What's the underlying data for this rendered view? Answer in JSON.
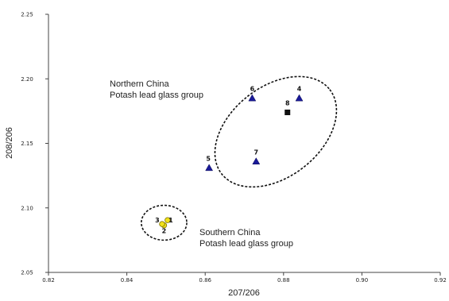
{
  "chart_data": {
    "type": "scatter",
    "xlabel": "207/206",
    "ylabel": "208/206",
    "xlim": [
      0.82,
      0.92
    ],
    "ylim": [
      2.05,
      2.25
    ],
    "x_ticks": [
      "0.82",
      "0.84",
      "0.86",
      "0.88",
      "0.90",
      "0.92"
    ],
    "y_ticks": [
      "2.05",
      "2.10",
      "2.15",
      "2.20",
      "2.25"
    ],
    "grid": false,
    "series": [
      {
        "marker": "triangle",
        "color": "#1a1a99",
        "points": [
          {
            "label": "4",
            "x": 0.884,
            "y": 2.185
          },
          {
            "label": "5",
            "x": 0.861,
            "y": 2.131
          },
          {
            "label": "6",
            "x": 0.872,
            "y": 2.185
          },
          {
            "label": "7",
            "x": 0.873,
            "y": 2.136
          }
        ]
      },
      {
        "marker": "square",
        "color": "#111111",
        "points": [
          {
            "label": "8",
            "x": 0.881,
            "y": 2.174
          }
        ]
      },
      {
        "marker": "circle",
        "color": "#f2e21a",
        "points": [
          {
            "label": "1",
            "x": 0.8504,
            "y": 2.0905
          },
          {
            "label": "2",
            "x": 0.8495,
            "y": 2.0865
          },
          {
            "label": "3",
            "x": 0.849,
            "y": 2.0875
          }
        ]
      }
    ],
    "groups": [
      {
        "lines": [
          "Northern China",
          "Potash lead glass group"
        ],
        "cx": 0.878,
        "cy": 2.159,
        "rx": 0.0175,
        "ry": 0.035,
        "rotate": -38
      },
      {
        "lines": [
          "Southern China",
          "Potash lead glass group"
        ],
        "cx": 0.8495,
        "cy": 2.0885,
        "rx": 0.0058,
        "ry": 0.0135,
        "rotate": 0
      }
    ]
  }
}
